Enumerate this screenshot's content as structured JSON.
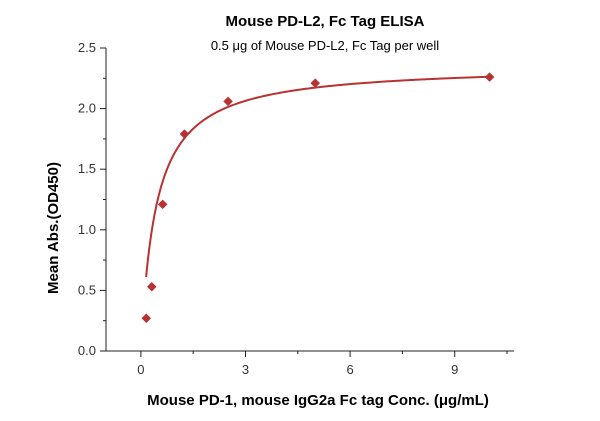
{
  "chart_data": {
    "type": "scatter",
    "title": "Mouse PD-L2, Fc Tag ELISA",
    "subtitle": "0.5 μg of Mouse PD-L2, Fc Tag per well",
    "xlabel": "Mouse PD-1, mouse IgG2a Fc tag Conc. (μg/mL)",
    "ylabel": "Mean Abs.(OD450)",
    "xlim": [
      -1.0,
      10.7
    ],
    "ylim": [
      0.0,
      2.5
    ],
    "x_ticks": [
      0,
      3,
      6,
      9
    ],
    "x_tick_labels": [
      "0",
      "3",
      "6",
      "9"
    ],
    "y_ticks": [
      0.0,
      0.5,
      1.0,
      1.5,
      2.0,
      2.5
    ],
    "y_tick_labels": [
      "0.0",
      "0.5",
      "1.0",
      "1.5",
      "2.0",
      "2.5"
    ],
    "grid": false,
    "color": "#b83232",
    "series": [
      {
        "x": [
          0.156,
          0.3125,
          0.625,
          1.25,
          2.5,
          5.0,
          10.0
        ],
        "y": [
          0.27,
          0.53,
          1.21,
          1.79,
          2.06,
          2.21,
          2.26
        ]
      }
    ],
    "fit_curve": {
      "model": "hyperbola",
      "ymax": 2.36,
      "k": 0.43,
      "x_range": [
        0.15,
        10.0
      ]
    }
  }
}
